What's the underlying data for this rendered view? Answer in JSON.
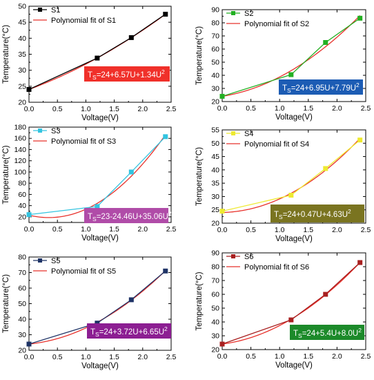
{
  "chart_data": [
    {
      "type": "line",
      "xlabel": "Voltage(V)",
      "ylabel": "Temperature(°C)",
      "xlim": [
        0,
        2.5
      ],
      "ylim": [
        20,
        50
      ],
      "xticks": [
        0.0,
        0.5,
        1.0,
        1.5,
        2.0,
        2.5
      ],
      "yticks": [
        20,
        25,
        30,
        35,
        40,
        45,
        50
      ],
      "series": [
        {
          "name": "S1",
          "color": "#000000",
          "marker": "square",
          "x": [
            0,
            1.2,
            1.8,
            2.4
          ],
          "y": [
            24,
            33.8,
            40.2,
            47.5
          ]
        },
        {
          "name": "Polynomial fit of S1",
          "color": "#e8302a",
          "fit": [
            24,
            6.57,
            1.34
          ]
        }
      ],
      "equation": {
        "base": "T",
        "sub": "S",
        "body": "=24+6.57U+1.34U",
        "sup": "2",
        "bg": "#f0302a",
        "fg": "#ffffff"
      }
    },
    {
      "type": "line",
      "xlabel": "Voltage(V)",
      "ylabel": "Temperature(°C)",
      "xlim": [
        0,
        2.5
      ],
      "ylim": [
        20,
        90
      ],
      "xticks": [
        0.0,
        0.5,
        1.0,
        1.5,
        2.0,
        2.5
      ],
      "yticks": [
        20,
        30,
        40,
        50,
        60,
        70,
        80,
        90
      ],
      "series": [
        {
          "name": "S2",
          "color": "#22b022",
          "marker": "square",
          "x": [
            0,
            1.2,
            1.8,
            2.4
          ],
          "y": [
            24,
            40.5,
            65,
            83.5
          ]
        },
        {
          "name": "Polynomial fit of S2",
          "color": "#e8302a",
          "fit": [
            24,
            6.95,
            7.79
          ]
        }
      ],
      "equation": {
        "base": "T",
        "sub": "S",
        "body": "=24+6.95U+7.79U",
        "sup": "2",
        "bg": "#1c5cb4",
        "fg": "#ffffff"
      }
    },
    {
      "type": "line",
      "xlabel": "Voltage(V)",
      "ylabel": "Temperature(°C)",
      "xlim": [
        0,
        2.5
      ],
      "ylim": [
        10,
        180
      ],
      "xticks": [
        0.0,
        0.5,
        1.0,
        1.5,
        2.0,
        2.5
      ],
      "yticks": [
        20,
        40,
        60,
        80,
        100,
        120,
        140,
        160,
        180
      ],
      "series": [
        {
          "name": "S3",
          "color": "#33c4e0",
          "marker": "square",
          "x": [
            0,
            1.2,
            1.8,
            2.4
          ],
          "y": [
            24,
            38.5,
            100,
            163
          ]
        },
        {
          "name": "Polynomial fit of S3",
          "color": "#e8302a",
          "fit": [
            23,
            -24.46,
            35.06
          ]
        }
      ],
      "equation": {
        "base": "T",
        "sub": "S",
        "body": "=23-24.46U+35.06U",
        "sup": "2",
        "bg": "#b04ca8",
        "fg": "#ffffff"
      }
    },
    {
      "type": "line",
      "xlabel": "Voltage(V)",
      "ylabel": "Temperature(°C)",
      "xlim": [
        0,
        2.5
      ],
      "ylim": [
        20,
        55
      ],
      "xticks": [
        0.0,
        0.5,
        1.0,
        1.5,
        2.0,
        2.5
      ],
      "yticks": [
        20,
        25,
        30,
        35,
        40,
        45,
        50,
        55
      ],
      "series": [
        {
          "name": "S4",
          "color": "#eeea30",
          "marker": "square",
          "x": [
            0,
            1.2,
            1.8,
            2.4
          ],
          "y": [
            24.5,
            30.5,
            40.5,
            51.2
          ]
        },
        {
          "name": "Polynomial fit of S4",
          "color": "#e8302a",
          "fit": [
            24,
            0.47,
            4.63
          ]
        }
      ],
      "equation": {
        "base": "T",
        "sub": "S",
        "body": "=24+0.47U+4.63U",
        "sup": "2",
        "bg": "#7a7420",
        "fg": "#ffffff"
      }
    },
    {
      "type": "line",
      "xlabel": "Voltage(V)",
      "ylabel": "Temperature(°C)",
      "xlim": [
        0,
        2.5
      ],
      "ylim": [
        20,
        80
      ],
      "xticks": [
        0.0,
        0.5,
        1.0,
        1.5,
        2.0,
        2.5
      ],
      "yticks": [
        20,
        30,
        40,
        50,
        60,
        70,
        80
      ],
      "series": [
        {
          "name": "S5",
          "color": "#1e3366",
          "marker": "square",
          "x": [
            0,
            1.2,
            1.8,
            2.4
          ],
          "y": [
            24,
            37.5,
            52.5,
            71
          ]
        },
        {
          "name": "Polynomial fit of S5",
          "color": "#e8302a",
          "fit": [
            24,
            3.72,
            6.65
          ]
        }
      ],
      "equation": {
        "base": "T",
        "sub": "S",
        "body": "=24+3.72U+6.65U",
        "sup": "2",
        "bg": "#8c1e92",
        "fg": "#ffffff"
      }
    },
    {
      "type": "line",
      "xlabel": "Voltage(V)",
      "ylabel": "Temperature(°C)",
      "xlim": [
        0,
        2.5
      ],
      "ylim": [
        20,
        90
      ],
      "xticks": [
        0.0,
        0.5,
        1.0,
        1.5,
        2.0,
        2.5
      ],
      "yticks": [
        20,
        30,
        40,
        50,
        60,
        70,
        80,
        90
      ],
      "series": [
        {
          "name": "S6",
          "color": "#a82020",
          "marker": "square",
          "x": [
            0,
            1.2,
            1.8,
            2.4
          ],
          "y": [
            24,
            41.5,
            60,
            83
          ]
        },
        {
          "name": "Polynomial fit of S6",
          "color": "#e8302a",
          "fit": [
            24,
            5.4,
            8.0
          ]
        }
      ],
      "equation": {
        "base": "T",
        "sub": "S",
        "body": "=24+5.4U+8.0U",
        "sup": "2",
        "bg": "#1c8a2a",
        "fg": "#ffffff"
      }
    }
  ]
}
